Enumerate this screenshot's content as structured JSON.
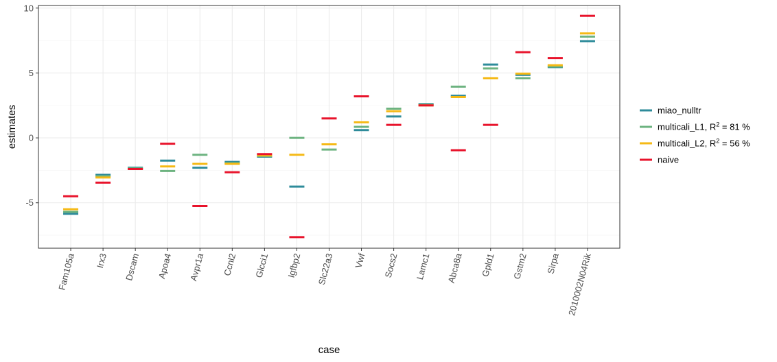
{
  "chart_data": {
    "type": "scatter",
    "marker": "horizontal-dash",
    "xlabel": "case",
    "ylabel": "estimates",
    "ylim": [
      -8.5,
      10.2
    ],
    "yticks": [
      -5,
      0,
      5,
      10
    ],
    "y_tick_labels": [
      "-5",
      "0",
      "5",
      "10"
    ],
    "grid": true,
    "legend_position": "right",
    "categories": [
      "Fam105a",
      "Irx3",
      "Dscam",
      "Apoa4",
      "Avpr1a",
      "Ccnl2",
      "Glcci1",
      "Igfbp2",
      "Slc22a3",
      "Vwf",
      "Socs2",
      "Lamc1",
      "Abca8a",
      "Gpld1",
      "Gstm2",
      "Sirpa",
      "2010002N04Rik"
    ],
    "series": [
      {
        "name": "miao_nulltr",
        "legend_label": {
          "base": "miao_nulltr",
          "sup": "",
          "rest": ""
        },
        "color": "#2e8b9a",
        "values": [
          -5.85,
          -2.85,
          -2.3,
          -1.75,
          -2.3,
          -1.85,
          -1.45,
          -3.75,
          -0.5,
          0.6,
          1.65,
          2.6,
          3.25,
          5.65,
          4.85,
          5.45,
          7.45
        ]
      },
      {
        "name": "multicali_L1",
        "legend_label": {
          "base": "multicali_L1, R",
          "sup": "2",
          "rest": " = 81 %"
        },
        "color": "#6db380",
        "values": [
          -5.7,
          -2.95,
          -2.35,
          -2.55,
          -1.3,
          -1.95,
          -1.4,
          0.0,
          -0.9,
          0.85,
          2.25,
          2.55,
          3.95,
          5.35,
          4.6,
          5.5,
          7.8
        ]
      },
      {
        "name": "multicali_L2",
        "legend_label": {
          "base": "multicali_L2, R",
          "sup": "2",
          "rest": " = 56 %"
        },
        "color": "#f5b915",
        "values": [
          -5.5,
          -3.05,
          -2.4,
          -2.2,
          -2.0,
          -2.0,
          -1.35,
          -1.3,
          -0.5,
          1.2,
          2.05,
          2.5,
          3.15,
          4.6,
          4.95,
          5.6,
          8.05
        ]
      },
      {
        "name": "naive",
        "legend_label": {
          "base": "naive",
          "sup": "",
          "rest": ""
        },
        "color": "#e8132b",
        "values": [
          -4.5,
          -3.45,
          -2.4,
          -0.45,
          -5.25,
          -2.65,
          -1.25,
          -7.65,
          1.5,
          3.2,
          1.0,
          2.5,
          -0.95,
          1.0,
          6.6,
          6.15,
          9.4
        ]
      }
    ]
  }
}
